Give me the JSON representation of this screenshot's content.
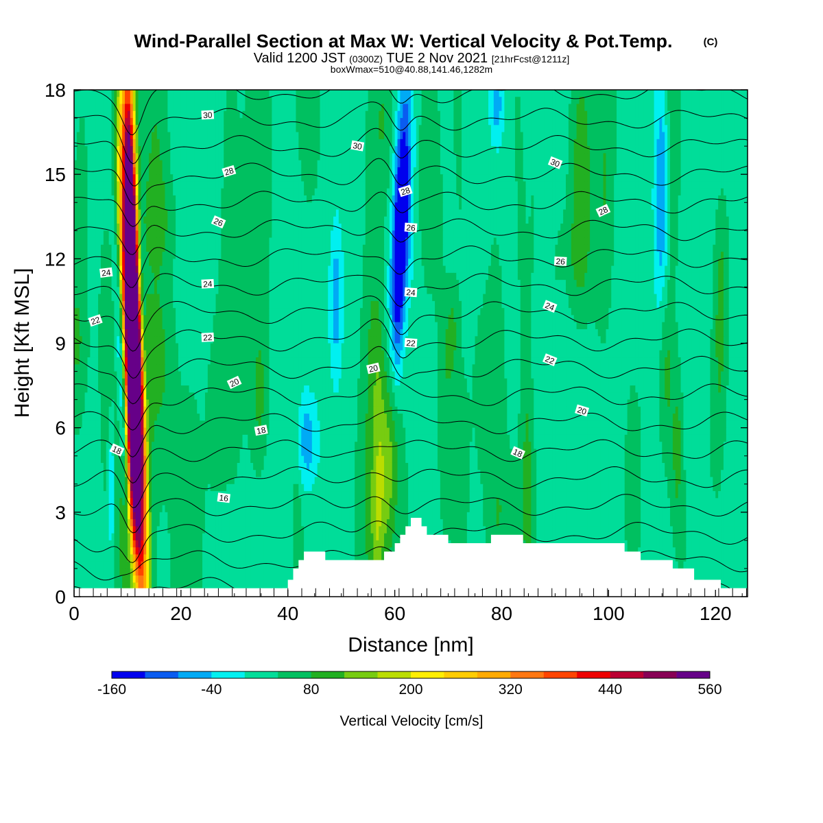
{
  "chart_data": {
    "type": "heatmap",
    "title": "Wind-Parallel Section at Max W: Vertical Velocity & Pot.Temp.",
    "title_mark": "(C)",
    "subtitle_parts": [
      "Valid 1200 JST",
      "(0300Z)",
      "TUE 2 Nov 2021",
      "[21hrFcst@1211z]"
    ],
    "subtitle2": "boxWmax=510@40.88,141.46,1282m",
    "xlabel": "Distance [nm]",
    "ylabel": "Height [Kft MSL]",
    "xlim": [
      0,
      126
    ],
    "ylim": [
      0,
      18
    ],
    "x_ticks": [
      0,
      20,
      40,
      60,
      80,
      100,
      120
    ],
    "y_ticks": [
      0,
      3,
      6,
      9,
      12,
      15,
      18
    ],
    "grid": false,
    "colorbar": {
      "label": "Vertical Velocity [cm/s]",
      "tick_labels": [
        "-160",
        "-40",
        "80",
        "200",
        "320",
        "440",
        "560"
      ],
      "tick_values": [
        -160,
        -40,
        80,
        200,
        320,
        440,
        560
      ],
      "levels": [
        -160,
        -120,
        -80,
        -40,
        0,
        40,
        80,
        120,
        160,
        200,
        240,
        280,
        320,
        360,
        400,
        440,
        480,
        520,
        560
      ],
      "colors": [
        "#0000ee",
        "#0a5cf0",
        "#00aaf5",
        "#00f0f0",
        "#00dd99",
        "#00c060",
        "#22b022",
        "#77cc11",
        "#bbdd00",
        "#ffee00",
        "#ffcc00",
        "#ffaa00",
        "#ff7711",
        "#ff4400",
        "#ee0000",
        "#bb0033",
        "#880055",
        "#660088"
      ]
    },
    "theta_contours": {
      "units": "K",
      "levels": [
        13,
        14,
        15,
        16,
        17,
        18,
        19,
        20,
        21,
        22,
        23,
        24,
        25,
        26,
        27,
        28,
        29,
        30,
        31
      ],
      "labeled": [
        {
          "value": "30",
          "x": 25,
          "y": 17.1
        },
        {
          "value": "30",
          "x": 53,
          "y": 16.0
        },
        {
          "value": "30",
          "x": 90,
          "y": 15.4
        },
        {
          "value": "28",
          "x": 29,
          "y": 15.1
        },
        {
          "value": "28",
          "x": 62,
          "y": 14.4
        },
        {
          "value": "28",
          "x": 99,
          "y": 13.7
        },
        {
          "value": "26",
          "x": 27,
          "y": 13.3
        },
        {
          "value": "26",
          "x": 63,
          "y": 13.1
        },
        {
          "value": "26",
          "x": 91,
          "y": 11.9
        },
        {
          "value": "24",
          "x": 6,
          "y": 11.5
        },
        {
          "value": "24",
          "x": 25,
          "y": 11.1
        },
        {
          "value": "24",
          "x": 63,
          "y": 10.8
        },
        {
          "value": "24",
          "x": 89,
          "y": 10.3
        },
        {
          "value": "22",
          "x": 4,
          "y": 9.8
        },
        {
          "value": "22",
          "x": 25,
          "y": 9.2
        },
        {
          "value": "22",
          "x": 63,
          "y": 9.0
        },
        {
          "value": "22",
          "x": 89,
          "y": 8.4
        },
        {
          "value": "20",
          "x": 30,
          "y": 7.6
        },
        {
          "value": "20",
          "x": 56,
          "y": 8.1
        },
        {
          "value": "20",
          "x": 95,
          "y": 6.6
        },
        {
          "value": "18",
          "x": 8,
          "y": 5.2
        },
        {
          "value": "18",
          "x": 35,
          "y": 5.9
        },
        {
          "value": "18",
          "x": 83,
          "y": 5.1
        },
        {
          "value": "16",
          "x": 28,
          "y": 3.5
        }
      ]
    },
    "terrain": {
      "x": [
        0,
        38,
        39,
        40,
        41,
        42,
        43,
        45,
        47,
        49,
        52,
        55,
        58,
        60,
        61,
        62,
        63,
        64,
        65,
        66,
        67,
        70,
        73,
        78,
        81,
        84,
        88,
        92,
        96,
        100,
        103,
        106,
        112,
        116,
        118,
        121,
        124,
        126
      ],
      "y": [
        0,
        0,
        0.3,
        0.6,
        1.0,
        1.3,
        1.6,
        1.6,
        1.3,
        1.3,
        1.3,
        1.3,
        1.6,
        1.9,
        2.2,
        2.5,
        2.8,
        2.8,
        2.5,
        2.2,
        2.2,
        1.9,
        1.9,
        2.2,
        2.2,
        1.9,
        1.9,
        1.9,
        1.9,
        1.9,
        1.6,
        1.3,
        1.0,
        0.6,
        0.6,
        0.3,
        0.3,
        0
      ]
    },
    "w_features": [
      {
        "x": 11,
        "y": 7.0,
        "sx": 1.0,
        "sy": 5.5,
        "amp": 600,
        "tilt": -0.25
      },
      {
        "x": 11.5,
        "y": 11.0,
        "sx": 0.9,
        "sy": 4.5,
        "amp": 380,
        "tilt": -0.25
      },
      {
        "x": 10.5,
        "y": 15.5,
        "sx": 0.8,
        "sy": 3.5,
        "amp": 220,
        "tilt": -0.1
      },
      {
        "x": 9.2,
        "y": 6.5,
        "sx": 0.6,
        "sy": 5.0,
        "amp": -140,
        "tilt": -0.2
      },
      {
        "x": 12.8,
        "y": 10.0,
        "sx": 0.5,
        "sy": 3.0,
        "amp": -150,
        "tilt": -0.2
      },
      {
        "x": 7.0,
        "y": 4.0,
        "sx": 0.5,
        "sy": 2.0,
        "amp": -90,
        "tilt": 0
      },
      {
        "x": 61.5,
        "y": 14.0,
        "sx": 1.1,
        "sy": 3.2,
        "amp": -190,
        "tilt": 0.1
      },
      {
        "x": 60.5,
        "y": 11.0,
        "sx": 1.0,
        "sy": 2.5,
        "amp": -110,
        "tilt": 0.1
      },
      {
        "x": 43.5,
        "y": 5.5,
        "sx": 1.5,
        "sy": 1.3,
        "amp": -110,
        "tilt": 0
      },
      {
        "x": 49.0,
        "y": 10.5,
        "sx": 0.8,
        "sy": 1.8,
        "amp": -80,
        "tilt": 0
      },
      {
        "x": 110.0,
        "y": 14.0,
        "sx": 0.9,
        "sy": 3.5,
        "amp": -110,
        "tilt": 0
      },
      {
        "x": 110.5,
        "y": 8.5,
        "sx": 1.0,
        "sy": 2.5,
        "amp": 75,
        "tilt": 0
      },
      {
        "x": 79.0,
        "y": 17.5,
        "sx": 0.8,
        "sy": 1.0,
        "amp": -90,
        "tilt": 0
      },
      {
        "x": 59.0,
        "y": 5.0,
        "sx": 1.6,
        "sy": 2.5,
        "amp": 85,
        "tilt": 0.15
      },
      {
        "x": 66.5,
        "y": 15.0,
        "sx": 1.5,
        "sy": 3.0,
        "amp": 65,
        "tilt": 0
      }
    ]
  }
}
